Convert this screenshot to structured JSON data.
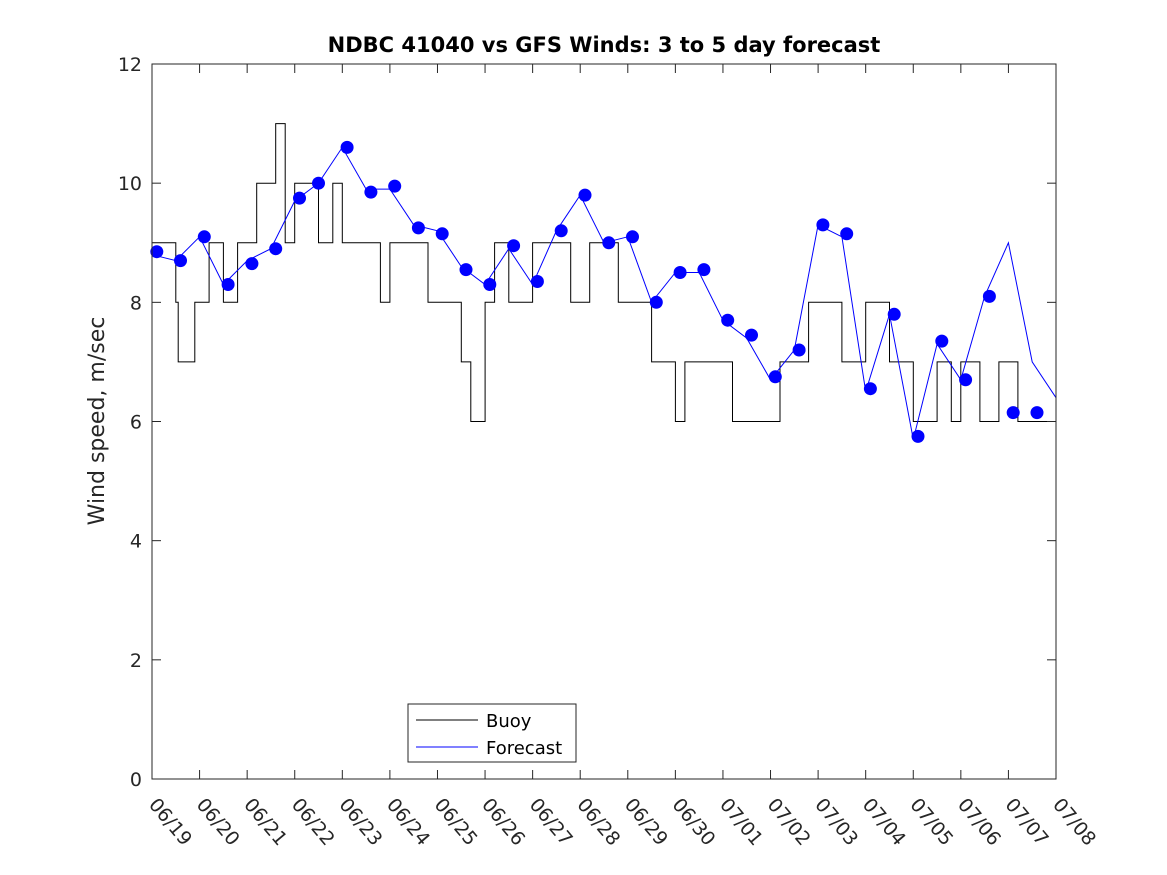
{
  "chart_data": {
    "type": "line",
    "title": "NDBC 41040 vs GFS Winds: 3 to 5 day forecast",
    "xlabel": "",
    "ylabel": "Wind speed, m/sec",
    "ylim": [
      0,
      12
    ],
    "yticks": [
      0,
      2,
      4,
      6,
      8,
      10,
      12
    ],
    "xticklabels": [
      "06/19",
      "06/20",
      "06/21",
      "06/22",
      "06/23",
      "06/24",
      "06/25",
      "06/26",
      "06/27",
      "06/28",
      "06/29",
      "06/30",
      "07/01",
      "07/02",
      "07/03",
      "07/04",
      "07/05",
      "07/06",
      "07/07",
      "07/08"
    ],
    "xlim_days": [
      0,
      19
    ],
    "grid": false,
    "legend_placement": "bottom-left",
    "colors": {
      "buoy": "#000000",
      "forecast": "#0000ff"
    },
    "series": [
      {
        "name": "Buoy",
        "style": "line",
        "x_days": [
          0,
          0.5,
          0.55,
          0.7,
          0.9,
          1.0,
          1.2,
          1.5,
          1.8,
          2.0,
          2.2,
          2.4,
          2.6,
          2.8,
          3.0,
          3.2,
          3.5,
          3.8,
          4.0,
          4.2,
          4.5,
          4.8,
          5.0,
          5.2,
          5.5,
          5.8,
          6.0,
          6.2,
          6.5,
          6.7,
          7.0,
          7.2,
          7.5,
          7.8,
          8.0,
          8.2,
          8.5,
          8.8,
          9.0,
          9.2,
          9.5,
          9.8,
          10.0,
          10.2,
          10.5,
          10.8,
          11.0,
          11.2,
          11.5,
          11.8,
          12.0,
          12.2,
          12.5,
          12.8,
          13.0,
          13.2,
          13.5,
          13.8,
          14.0,
          14.2,
          14.5,
          14.8,
          15.0,
          15.2,
          15.5,
          15.8,
          16.0,
          16.2,
          16.5,
          16.8,
          17.0,
          17.2,
          17.4,
          17.6,
          17.8,
          18.0,
          18.2,
          18.5,
          18.8,
          19.0
        ],
        "y": [
          9,
          8,
          7,
          7,
          8,
          8,
          9,
          8,
          9,
          9,
          10,
          10,
          11,
          9,
          10,
          10,
          9,
          10,
          9,
          9,
          9,
          8,
          9,
          9,
          9,
          8,
          8,
          8,
          7,
          6,
          8,
          9,
          8,
          8,
          9,
          9,
          9,
          8,
          8,
          9,
          9,
          8,
          8,
          8,
          7,
          7,
          6,
          7,
          7,
          7,
          7,
          6,
          6,
          6,
          6,
          7,
          7,
          8,
          8,
          8,
          7,
          7,
          8,
          8,
          7,
          7,
          6,
          6,
          7,
          6,
          7,
          7,
          6,
          6,
          7,
          7,
          6,
          6,
          6,
          6
        ]
      },
      {
        "name": "Forecast",
        "style": "line",
        "x_days": [
          0,
          0.5,
          1.0,
          1.5,
          2.0,
          2.5,
          3.0,
          3.5,
          4.0,
          4.5,
          5.0,
          5.5,
          6.0,
          6.5,
          7.0,
          7.5,
          8.0,
          8.5,
          9.0,
          9.5,
          10.0,
          10.5,
          11.0,
          11.5,
          12.0,
          12.5,
          13.0,
          13.5,
          14.0,
          14.5,
          15.0,
          15.5,
          16.0,
          16.5,
          17.0,
          17.5,
          18.0,
          18.5,
          19.0
        ],
        "y": [
          8.8,
          8.7,
          9.1,
          8.3,
          8.7,
          8.9,
          9.7,
          10.0,
          10.6,
          9.9,
          9.9,
          9.3,
          9.2,
          8.6,
          8.3,
          8.9,
          8.3,
          9.2,
          9.8,
          9.0,
          9.1,
          8.0,
          8.5,
          8.5,
          7.7,
          7.4,
          6.7,
          7.2,
          9.3,
          9.1,
          6.5,
          7.8,
          5.7,
          7.3,
          6.7,
          8.1,
          9.0,
          7.0,
          6.4
        ]
      },
      {
        "name": "",
        "style": "markers",
        "x_days": [
          0.1,
          0.6,
          1.1,
          1.6,
          2.1,
          2.6,
          3.1,
          3.5,
          4.1,
          4.6,
          5.1,
          5.6,
          6.1,
          6.6,
          7.1,
          7.6,
          8.1,
          8.6,
          9.1,
          9.6,
          10.1,
          10.6,
          11.1,
          11.6,
          12.1,
          12.6,
          13.1,
          13.6,
          14.1,
          14.6,
          15.1,
          15.6,
          16.1,
          16.6,
          17.1,
          17.6,
          18.1,
          18.6
        ],
        "y": [
          8.85,
          8.7,
          9.1,
          8.3,
          8.65,
          8.9,
          9.75,
          10.0,
          10.6,
          9.85,
          9.95,
          9.25,
          9.15,
          8.55,
          8.3,
          8.95,
          8.35,
          9.2,
          9.8,
          9.0,
          9.1,
          8.0,
          8.5,
          8.55,
          7.7,
          7.45,
          6.75,
          7.2,
          9.3,
          9.15,
          6.55,
          7.8,
          5.75,
          7.35,
          6.7,
          8.1,
          6.15,
          6.15
        ]
      }
    ]
  },
  "legend": {
    "buoy_label": "Buoy",
    "forecast_label": "Forecast"
  }
}
